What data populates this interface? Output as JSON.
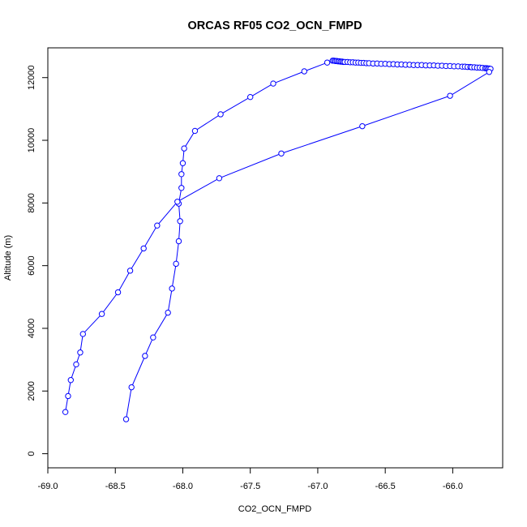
{
  "chart_data": {
    "type": "line",
    "title": "ORCAS RF05 CO2_OCN_FMPD",
    "xlabel": "CO2_OCN_FMPD",
    "ylabel": "Altitude (m)",
    "xlim": [
      -69.0,
      -65.63
    ],
    "ylim": [
      -450,
      12950
    ],
    "xticks": [
      -69.0,
      -68.5,
      -68.0,
      -67.5,
      -67.0,
      -66.5,
      -66.0
    ],
    "xtick_labels": [
      "-69.0",
      "-68.5",
      "-68.0",
      "-67.5",
      "-67.0",
      "-66.5",
      "-66.0"
    ],
    "yticks": [
      0,
      2000,
      4000,
      6000,
      8000,
      10000,
      12000
    ],
    "ytick_labels": [
      "0",
      "2000",
      "4000",
      "6000",
      "8000",
      "10000",
      "12000"
    ],
    "grid": false,
    "legend": "none",
    "series": [
      {
        "color": "#0000ff",
        "marker": "open-circle",
        "x": [
          -68.42,
          -68.38,
          -68.28,
          -68.22,
          -68.11,
          -68.08,
          -68.05,
          -68.03,
          -68.02,
          -68.03,
          -68.01,
          -68.01,
          -68.0,
          -67.99,
          -67.91,
          -67.72,
          -67.5,
          -67.33,
          -67.1,
          -66.93,
          -66.89,
          -66.88,
          -66.87,
          -66.86,
          -66.85,
          -66.84,
          -66.83,
          -66.82,
          -66.81,
          -66.8,
          -66.78,
          -66.76,
          -66.74,
          -66.72,
          -66.7,
          -66.68,
          -66.66,
          -66.64,
          -66.62,
          -66.59,
          -66.56,
          -66.53,
          -66.5,
          -66.47,
          -66.44,
          -66.41,
          -66.38,
          -66.35,
          -66.32,
          -66.29,
          -66.26,
          -66.23,
          -66.2,
          -66.17,
          -66.14,
          -66.11,
          -66.08,
          -66.05,
          -66.02,
          -65.99,
          -65.96,
          -65.93,
          -65.91,
          -65.89,
          -65.87,
          -65.86,
          -65.84,
          -65.82,
          -65.8,
          -65.78,
          -65.76,
          -65.75,
          -65.74,
          -65.73,
          -65.72,
          -65.73,
          -66.02,
          -66.67,
          -67.27,
          -67.73,
          -68.04,
          -68.19,
          -68.29,
          -68.39,
          -68.48,
          -68.6,
          -68.74,
          -68.76,
          -68.79,
          -68.83,
          -68.85,
          -68.87
        ],
        "y": [
          1100,
          2120,
          3120,
          3710,
          4500,
          5270,
          6060,
          6780,
          7420,
          7980,
          8480,
          8920,
          9270,
          9740,
          10300,
          10830,
          11380,
          11810,
          12200,
          12480,
          12540,
          12540,
          12530,
          12530,
          12520,
          12520,
          12510,
          12510,
          12500,
          12500,
          12500,
          12490,
          12490,
          12480,
          12480,
          12470,
          12470,
          12460,
          12460,
          12450,
          12450,
          12440,
          12440,
          12430,
          12430,
          12420,
          12420,
          12410,
          12410,
          12400,
          12400,
          12400,
          12390,
          12390,
          12390,
          12380,
          12380,
          12370,
          12370,
          12360,
          12360,
          12350,
          12350,
          12340,
          12340,
          12330,
          12330,
          12320,
          12320,
          12310,
          12300,
          12300,
          12290,
          12290,
          12280,
          12180,
          11420,
          10450,
          9580,
          8790,
          8040,
          7280,
          6550,
          5840,
          5150,
          4460,
          3820,
          3230,
          2850,
          2350,
          1840,
          1330
        ]
      }
    ]
  }
}
